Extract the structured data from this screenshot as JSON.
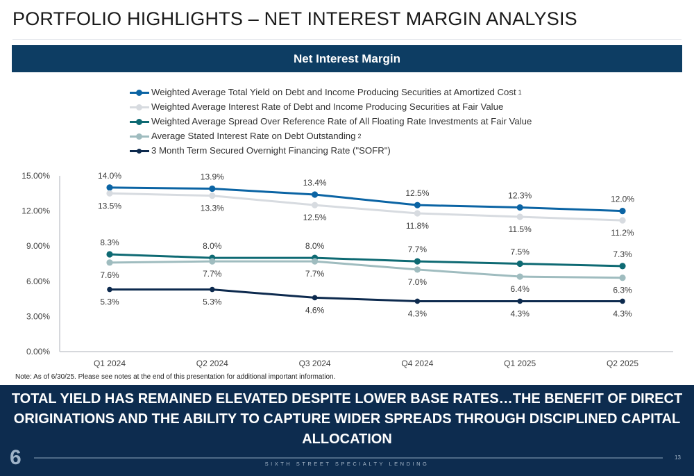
{
  "header": {
    "title": "PORTFOLIO HIGHLIGHTS – NET INTEREST MARGIN ANALYSIS",
    "section_title": "Net Interest Margin"
  },
  "legend": [
    {
      "label": "Weighted Average Total Yield on Debt and Income Producing Securities at Amortized Cost",
      "sup": "1"
    },
    {
      "label": "Weighted Average Interest Rate of Debt and Income Producing Securities at Fair Value",
      "sup": ""
    },
    {
      "label": "Weighted Average Spread Over Reference Rate of All Floating Rate Investments at Fair Value",
      "sup": ""
    },
    {
      "label": "Average Stated Interest Rate on Debt Outstanding",
      "sup": "2"
    },
    {
      "label": "3 Month Term Secured Overnight Financing Rate (\"SOFR\")",
      "sup": ""
    }
  ],
  "chart_data": {
    "type": "line",
    "title": "Net Interest Margin",
    "xlabel": "",
    "ylabel": "",
    "categories": [
      "Q1 2024",
      "Q2 2024",
      "Q3 2024",
      "Q4 2024",
      "Q1 2025",
      "Q2 2025"
    ],
    "ylim": [
      0,
      15
    ],
    "yticks": [
      "0.00%",
      "3.00%",
      "6.00%",
      "9.00%",
      "12.00%",
      "15.00%"
    ],
    "grid": false,
    "legend_position": "top",
    "series": [
      {
        "name": "Weighted Average Total Yield on Debt and Income Producing Securities at Amortized Cost",
        "color": "#0b64a4",
        "values": [
          14.0,
          13.9,
          13.4,
          12.5,
          12.3,
          12.0
        ],
        "labels": [
          "14.0%",
          "13.9%",
          "13.4%",
          "12.5%",
          "12.3%",
          "12.0%"
        ],
        "label_pos": "above"
      },
      {
        "name": "Weighted Average Interest Rate of Debt and Income Producing Securities at Fair Value",
        "color": "#d7dbe0",
        "values": [
          13.5,
          13.3,
          12.5,
          11.8,
          11.5,
          11.2
        ],
        "labels": [
          "13.5%",
          "13.3%",
          "12.5%",
          "11.8%",
          "11.5%",
          "11.2%"
        ],
        "label_pos": "below"
      },
      {
        "name": "Weighted Average Spread Over Reference Rate of All Floating Rate Investments at Fair Value",
        "color": "#0e6a73",
        "values": [
          8.3,
          8.0,
          8.0,
          7.7,
          7.5,
          7.3
        ],
        "labels": [
          "8.3%",
          "8.0%",
          "8.0%",
          "7.7%",
          "7.5%",
          "7.3%"
        ],
        "label_pos": "above"
      },
      {
        "name": "Average Stated Interest Rate on Debt Outstanding",
        "color": "#9fbcbf",
        "values": [
          7.6,
          7.7,
          7.7,
          7.0,
          6.4,
          6.3
        ],
        "labels": [
          "7.6%",
          "7.7%",
          "7.7%",
          "7.0%",
          "6.4%",
          "6.3%"
        ],
        "label_pos": "below"
      },
      {
        "name": "3 Month Term Secured Overnight Financing Rate (\"SOFR\")",
        "color": "#0d2a4e",
        "values": [
          5.3,
          5.3,
          4.6,
          4.3,
          4.3,
          4.3
        ],
        "labels": [
          "5.3%",
          "5.3%",
          "4.6%",
          "4.3%",
          "4.3%",
          "4.3%"
        ],
        "label_pos": "below"
      }
    ]
  },
  "note": "Note: As of 6/30/25. Please see notes at the end of this presentation for additional important information.",
  "banner": {
    "text": "TOTAL YIELD HAS REMAINED ELEVATED DESPITE LOWER BASE RATES…THE BENEFIT OF DIRECT ORIGINATIONS AND THE ABILITY TO CAPTURE WIDER SPREADS THROUGH DISCIPLINED CAPITAL ALLOCATION"
  },
  "footer": {
    "logo": "6",
    "company": "SIXTH STREET SPECIALTY LENDING",
    "page_number": "13"
  }
}
